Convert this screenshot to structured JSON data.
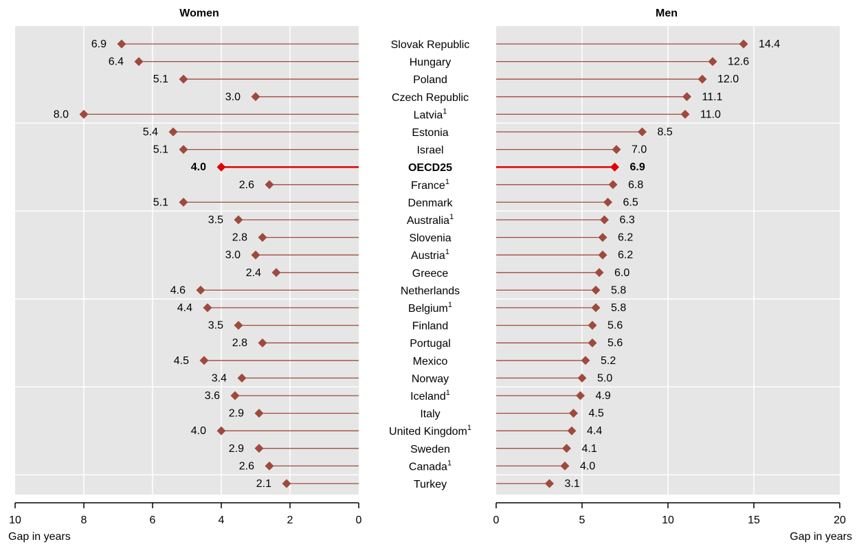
{
  "chart_data": {
    "type": "dot",
    "categories": [
      "Slovak Republic",
      "Hungary",
      "Poland",
      "Czech Republic",
      "Latvia",
      "Estonia",
      "Israel",
      "OECD25",
      "France",
      "Denmark",
      "Australia",
      "Slovenia",
      "Austria",
      "Greece",
      "Netherlands",
      "Belgium",
      "Finland",
      "Portugal",
      "Mexico",
      "Norway",
      "Iceland",
      "Italy",
      "United Kingdom",
      "Sweden",
      "Canada",
      "Turkey"
    ],
    "category_superscripts": [
      "",
      "",
      "",
      "",
      "1",
      "",
      "",
      "",
      "1",
      "",
      "1",
      "",
      "1",
      "",
      "",
      "1",
      "",
      "",
      "",
      "",
      "1",
      "",
      "1",
      "",
      "1",
      ""
    ],
    "highlight_category": "OECD25",
    "panels": [
      {
        "title": "Women",
        "xlabel": "Gap in years",
        "xlim": [
          10,
          0
        ],
        "xticks": [
          "10",
          "8",
          "6",
          "4",
          "2",
          "0"
        ],
        "values": [
          6.9,
          6.4,
          5.1,
          3.0,
          8.0,
          5.4,
          5.1,
          4.0,
          2.6,
          5.1,
          3.5,
          2.8,
          3.0,
          2.4,
          4.6,
          4.4,
          3.5,
          2.8,
          4.5,
          3.4,
          3.6,
          2.9,
          4.0,
          2.9,
          2.6,
          2.1
        ],
        "value_labels": [
          "6.9",
          "6.4",
          "5.1",
          "3.0",
          "8.0",
          "5.4",
          "5.1",
          "4.0",
          "2.6",
          "5.1",
          "3.5",
          "2.8",
          "3.0",
          "2.4",
          "4.6",
          "4.4",
          "3.5",
          "2.8",
          "4.5",
          "3.4",
          "3.6",
          "2.9",
          "4.0",
          "2.9",
          "2.6",
          "2.1"
        ]
      },
      {
        "title": "Men",
        "xlabel": "Gap in years",
        "xlim": [
          0,
          20
        ],
        "xticks": [
          "0",
          "5",
          "10",
          "15",
          "20"
        ],
        "values": [
          14.4,
          12.6,
          12.0,
          11.1,
          11.0,
          8.5,
          7.0,
          6.9,
          6.8,
          6.5,
          6.3,
          6.2,
          6.2,
          6.0,
          5.8,
          5.8,
          5.6,
          5.6,
          5.2,
          5.0,
          4.9,
          4.5,
          4.4,
          4.1,
          4.0,
          3.1
        ],
        "value_labels": [
          "14.4",
          "12.6",
          "12.0",
          "11.1",
          "11.0",
          "8.5",
          "7.0",
          "6.9",
          "6.8",
          "6.5",
          "6.3",
          "6.2",
          "6.2",
          "6.0",
          "5.8",
          "5.8",
          "5.6",
          "5.6",
          "5.2",
          "5.0",
          "4.9",
          "4.5",
          "4.4",
          "4.1",
          "4.0",
          "3.1"
        ]
      }
    ],
    "colors": {
      "panel_bg": "#e6e6e6",
      "grid": "#ffffff",
      "marker": "#9e4a3c",
      "highlight": "#e00000"
    },
    "grid": true
  }
}
